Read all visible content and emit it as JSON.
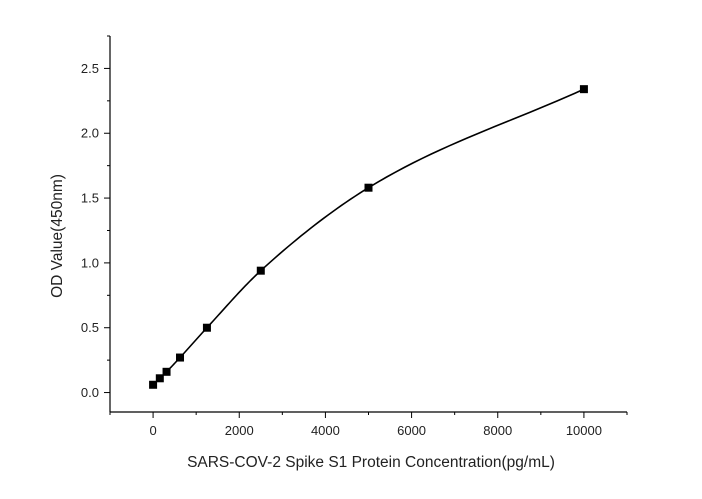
{
  "chart_data": {
    "type": "scatter",
    "title": "",
    "xlabel": "SARS-COV-2 Spike S1 Protein Concentration(pg/mL)",
    "ylabel": "OD Value(450nm)",
    "xlim": [
      -1000,
      11000
    ],
    "ylim": [
      -0.15,
      2.75
    ],
    "xticks": [
      0,
      2000,
      4000,
      6000,
      8000,
      10000
    ],
    "yticks": [
      0.0,
      0.5,
      1.0,
      1.5,
      2.0,
      2.5
    ],
    "xtick_labels": [
      "0",
      "2000",
      "4000",
      "6000",
      "8000",
      "10000"
    ],
    "ytick_labels": [
      "0.0",
      "0.5",
      "1.0",
      "1.5",
      "2.0",
      "2.5"
    ],
    "grid": false,
    "legend": "none",
    "fit_curve": "smooth line through points",
    "marker": "filled square",
    "colors": {
      "line": "#000000",
      "marker": "#000000",
      "axis": "#000000"
    },
    "series": [
      {
        "x": [
          0,
          156.25,
          312.5,
          625,
          1250,
          2500,
          5000,
          10000
        ],
        "y": [
          0.06,
          0.11,
          0.16,
          0.27,
          0.5,
          0.94,
          1.58,
          2.34
        ]
      }
    ]
  }
}
